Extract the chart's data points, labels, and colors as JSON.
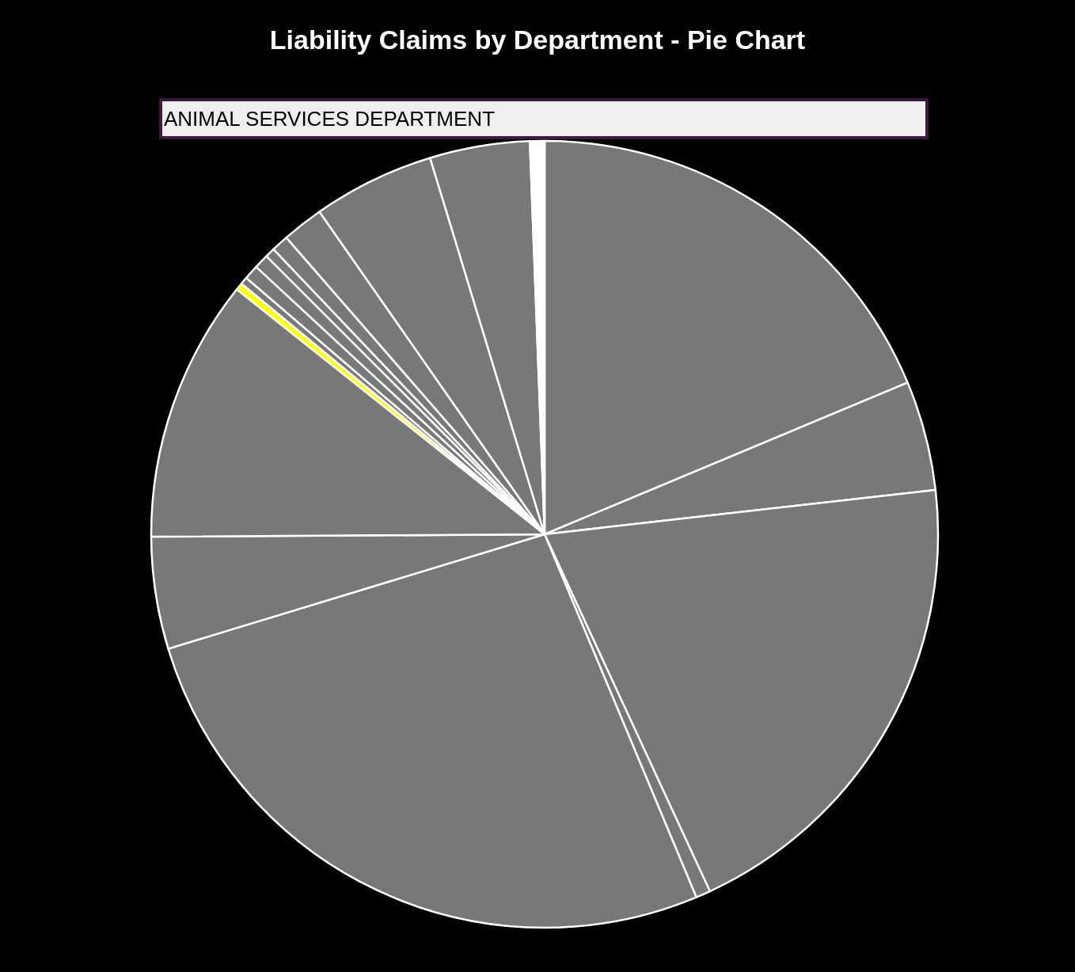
{
  "chart_data": {
    "type": "pie",
    "title": "Liability Claims by Department - Pie Chart",
    "annotations": [
      "ANIMAL SERVICES DEPARTMENT"
    ],
    "categories": [
      null,
      null,
      null,
      null,
      null,
      null,
      null,
      null,
      null,
      null,
      null,
      null,
      null,
      null,
      null,
      null,
      null
    ],
    "values": [
      18.7,
      4.5,
      19.9,
      0.6,
      26.6,
      4.6,
      10.8,
      0.3,
      0.3,
      0.6,
      0.6,
      0.4,
      0.7,
      1.7,
      5.0,
      4.1,
      0.6
    ],
    "colors": [
      "#787878",
      "#787878",
      "#787878",
      "#787878",
      "#787878",
      "#787878",
      "#787878",
      "#ffff00",
      "#787878",
      "#787878",
      "#787878",
      "#787878",
      "#787878",
      "#787878",
      "#787878",
      "#787878",
      "#ffffff"
    ],
    "legend": false
  }
}
